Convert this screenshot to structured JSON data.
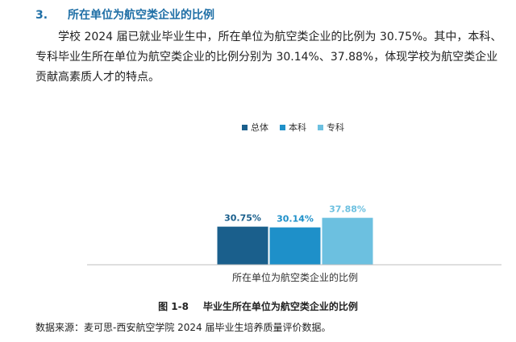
{
  "section": {
    "number": "3.",
    "title": "所在单位为航空类企业的比例"
  },
  "paragraph": "学校 2024 届已就业毕业生中，所在单位为航空类企业的比例为 30.75%。其中，本科、专科毕业生所在单位为航空类企业的比例分别为 30.14%、37.88%，体现学校为航空类企业贡献高素质人才的特点。",
  "chart_data": {
    "type": "bar",
    "categories": [
      "所在单位为航空类企业的比例"
    ],
    "series": [
      {
        "name": "总体",
        "values": [
          30.75
        ],
        "label": "30.75%",
        "color": "#1a5f8c"
      },
      {
        "name": "本科",
        "values": [
          30.14
        ],
        "label": "30.14%",
        "color": "#1e90c9"
      },
      {
        "name": "专科",
        "values": [
          37.88
        ],
        "label": "37.88%",
        "color": "#6cc0e0"
      }
    ],
    "ylim": [
      0,
      100
    ],
    "grid": false,
    "legend": "top"
  },
  "caption": {
    "number": "图 1-8",
    "text": "毕业生所在单位为航空类企业的比例"
  },
  "source": "数据来源：麦可思-西安航空学院 2024 届毕业生培养质量评价数据。"
}
